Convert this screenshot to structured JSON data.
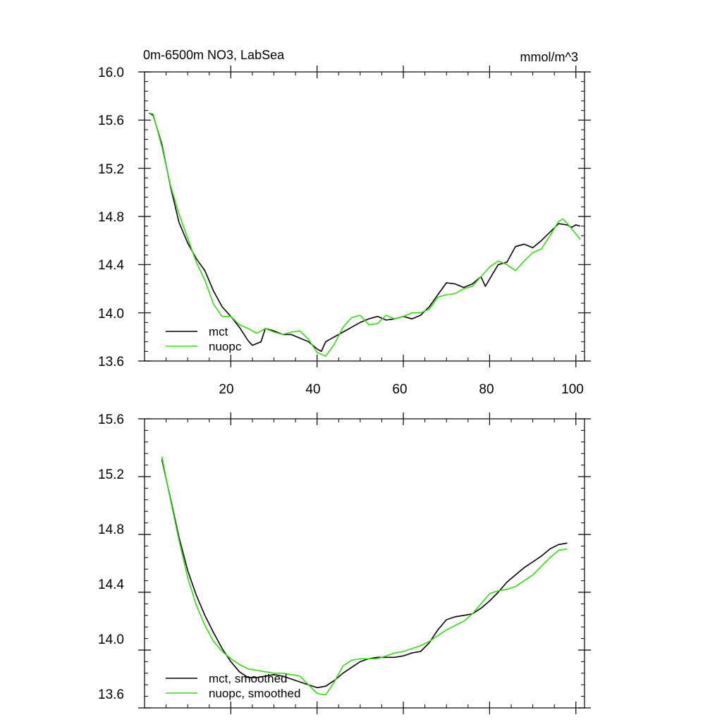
{
  "chart_data": [
    {
      "type": "line",
      "title": "0m-6500m NO3, LabSea",
      "units": "mmol/m^3",
      "xlim": [
        0,
        102
      ],
      "ylim": [
        13.6,
        16.0
      ],
      "xticks": [
        20,
        40,
        60,
        80,
        100
      ],
      "yticks": [
        13.6,
        14.0,
        14.4,
        14.8,
        15.2,
        15.6,
        16.0
      ],
      "ytick_labels": [
        "13.6",
        "14.0",
        "14.4",
        "14.8",
        "15.2",
        "15.6",
        "16.0"
      ],
      "legend_position": "bottom-left",
      "series": [
        {
          "name": "mct",
          "color": "#000000",
          "points": [
            [
              1,
              15.66
            ],
            [
              2,
              15.64
            ],
            [
              4,
              15.4
            ],
            [
              6,
              15.05
            ],
            [
              8,
              14.75
            ],
            [
              10,
              14.58
            ],
            [
              12,
              14.45
            ],
            [
              14,
              14.35
            ],
            [
              16,
              14.18
            ],
            [
              18,
              14.05
            ],
            [
              20,
              13.97
            ],
            [
              22,
              13.88
            ],
            [
              24,
              13.77
            ],
            [
              25,
              13.73
            ],
            [
              27,
              13.76
            ],
            [
              28,
              13.87
            ],
            [
              30,
              13.85
            ],
            [
              32,
              13.82
            ],
            [
              34,
              13.82
            ],
            [
              36,
              13.79
            ],
            [
              38,
              13.76
            ],
            [
              40,
              13.7
            ],
            [
              41,
              13.68
            ],
            [
              42,
              13.76
            ],
            [
              44,
              13.8
            ],
            [
              46,
              13.84
            ],
            [
              48,
              13.88
            ],
            [
              50,
              13.92
            ],
            [
              52,
              13.95
            ],
            [
              54,
              13.97
            ],
            [
              56,
              13.94
            ],
            [
              58,
              13.95
            ],
            [
              60,
              13.97
            ],
            [
              62,
              13.95
            ],
            [
              64,
              13.98
            ],
            [
              66,
              14.05
            ],
            [
              68,
              14.15
            ],
            [
              70,
              14.25
            ],
            [
              72,
              14.24
            ],
            [
              74,
              14.21
            ],
            [
              76,
              14.24
            ],
            [
              78,
              14.3
            ],
            [
              79,
              14.22
            ],
            [
              80,
              14.28
            ],
            [
              82,
              14.4
            ],
            [
              84,
              14.42
            ],
            [
              86,
              14.55
            ],
            [
              88,
              14.57
            ],
            [
              90,
              14.54
            ],
            [
              92,
              14.6
            ],
            [
              94,
              14.67
            ],
            [
              96,
              14.74
            ],
            [
              98,
              14.73
            ],
            [
              99,
              14.71
            ],
            [
              100,
              14.73
            ],
            [
              101,
              14.72
            ]
          ]
        },
        {
          "name": "nuopc",
          "color": "#33dd11",
          "points": [
            [
              1,
              15.66
            ],
            [
              2,
              15.65
            ],
            [
              4,
              15.38
            ],
            [
              6,
              15.06
            ],
            [
              8,
              14.82
            ],
            [
              10,
              14.62
            ],
            [
              12,
              14.42
            ],
            [
              14,
              14.27
            ],
            [
              16,
              14.07
            ],
            [
              18,
              13.97
            ],
            [
              20,
              13.97
            ],
            [
              22,
              13.9
            ],
            [
              24,
              13.87
            ],
            [
              26,
              13.83
            ],
            [
              28,
              13.87
            ],
            [
              30,
              13.84
            ],
            [
              32,
              13.82
            ],
            [
              34,
              13.84
            ],
            [
              36,
              13.85
            ],
            [
              38,
              13.78
            ],
            [
              40,
              13.67
            ],
            [
              42,
              13.64
            ],
            [
              44,
              13.74
            ],
            [
              46,
              13.88
            ],
            [
              48,
              13.96
            ],
            [
              50,
              13.98
            ],
            [
              52,
              13.9
            ],
            [
              54,
              13.91
            ],
            [
              56,
              13.98
            ],
            [
              58,
              13.95
            ],
            [
              60,
              13.97
            ],
            [
              62,
              14.0
            ],
            [
              64,
              14.0
            ],
            [
              66,
              14.03
            ],
            [
              68,
              14.13
            ],
            [
              70,
              14.15
            ],
            [
              72,
              14.16
            ],
            [
              74,
              14.2
            ],
            [
              76,
              14.22
            ],
            [
              78,
              14.3
            ],
            [
              80,
              14.38
            ],
            [
              82,
              14.43
            ],
            [
              84,
              14.4
            ],
            [
              86,
              14.35
            ],
            [
              88,
              14.43
            ],
            [
              90,
              14.5
            ],
            [
              92,
              14.53
            ],
            [
              94,
              14.64
            ],
            [
              96,
              14.76
            ],
            [
              97,
              14.78
            ],
            [
              99,
              14.7
            ],
            [
              101,
              14.61
            ]
          ]
        }
      ]
    },
    {
      "type": "line",
      "xlim": [
        0,
        102
      ],
      "ylim": [
        13.6,
        15.6
      ],
      "xticks": [
        20,
        40,
        60,
        80,
        100
      ],
      "yticks": [
        13.6,
        14.0,
        14.4,
        14.8,
        15.2,
        15.6
      ],
      "ytick_labels": [
        "13.6",
        "14.0",
        "14.4",
        "14.8",
        "15.2",
        "15.6"
      ],
      "legend_position": "bottom-left",
      "series": [
        {
          "name": "mct, smoothed",
          "color": "#000000",
          "points": [
            [
              4,
              15.32
            ],
            [
              6,
              15.05
            ],
            [
              8,
              14.78
            ],
            [
              10,
              14.55
            ],
            [
              12,
              14.38
            ],
            [
              14,
              14.24
            ],
            [
              16,
              14.12
            ],
            [
              18,
              14.01
            ],
            [
              20,
              13.92
            ],
            [
              22,
              13.85
            ],
            [
              24,
              13.81
            ],
            [
              26,
              13.81
            ],
            [
              28,
              13.82
            ],
            [
              30,
              13.83
            ],
            [
              32,
              13.82
            ],
            [
              34,
              13.8
            ],
            [
              36,
              13.78
            ],
            [
              38,
              13.76
            ],
            [
              40,
              13.74
            ],
            [
              42,
              13.75
            ],
            [
              44,
              13.79
            ],
            [
              46,
              13.84
            ],
            [
              48,
              13.88
            ],
            [
              50,
              13.92
            ],
            [
              52,
              13.94
            ],
            [
              54,
              13.95
            ],
            [
              56,
              13.95
            ],
            [
              58,
              13.95
            ],
            [
              60,
              13.96
            ],
            [
              62,
              13.98
            ],
            [
              64,
              13.99
            ],
            [
              66,
              14.05
            ],
            [
              68,
              14.14
            ],
            [
              70,
              14.21
            ],
            [
              72,
              14.23
            ],
            [
              74,
              14.24
            ],
            [
              76,
              14.25
            ],
            [
              78,
              14.29
            ],
            [
              80,
              14.34
            ],
            [
              82,
              14.4
            ],
            [
              84,
              14.47
            ],
            [
              86,
              14.52
            ],
            [
              88,
              14.57
            ],
            [
              90,
              14.61
            ],
            [
              92,
              14.65
            ],
            [
              94,
              14.7
            ],
            [
              96,
              14.73
            ],
            [
              98,
              14.74
            ]
          ]
        },
        {
          "name": "nuopc, smoothed",
          "color": "#33dd11",
          "points": [
            [
              4,
              15.34
            ],
            [
              6,
              15.04
            ],
            [
              8,
              14.76
            ],
            [
              10,
              14.5
            ],
            [
              12,
              14.31
            ],
            [
              14,
              14.17
            ],
            [
              16,
              14.06
            ],
            [
              18,
              13.99
            ],
            [
              20,
              13.94
            ],
            [
              22,
              13.9
            ],
            [
              24,
              13.87
            ],
            [
              26,
              13.86
            ],
            [
              28,
              13.85
            ],
            [
              30,
              13.84
            ],
            [
              32,
              13.84
            ],
            [
              34,
              13.83
            ],
            [
              36,
              13.82
            ],
            [
              38,
              13.76
            ],
            [
              40,
              13.7
            ],
            [
              42,
              13.69
            ],
            [
              44,
              13.78
            ],
            [
              46,
              13.89
            ],
            [
              48,
              13.93
            ],
            [
              50,
              13.94
            ],
            [
              52,
              13.94
            ],
            [
              54,
              13.94
            ],
            [
              56,
              13.96
            ],
            [
              58,
              13.98
            ],
            [
              60,
              13.99
            ],
            [
              62,
              14.01
            ],
            [
              64,
              14.03
            ],
            [
              66,
              14.06
            ],
            [
              68,
              14.1
            ],
            [
              70,
              14.14
            ],
            [
              72,
              14.17
            ],
            [
              74,
              14.2
            ],
            [
              76,
              14.25
            ],
            [
              78,
              14.32
            ],
            [
              80,
              14.39
            ],
            [
              82,
              14.41
            ],
            [
              84,
              14.42
            ],
            [
              86,
              14.44
            ],
            [
              88,
              14.48
            ],
            [
              90,
              14.52
            ],
            [
              92,
              14.58
            ],
            [
              94,
              14.64
            ],
            [
              96,
              14.69
            ],
            [
              98,
              14.7
            ]
          ]
        }
      ]
    }
  ]
}
